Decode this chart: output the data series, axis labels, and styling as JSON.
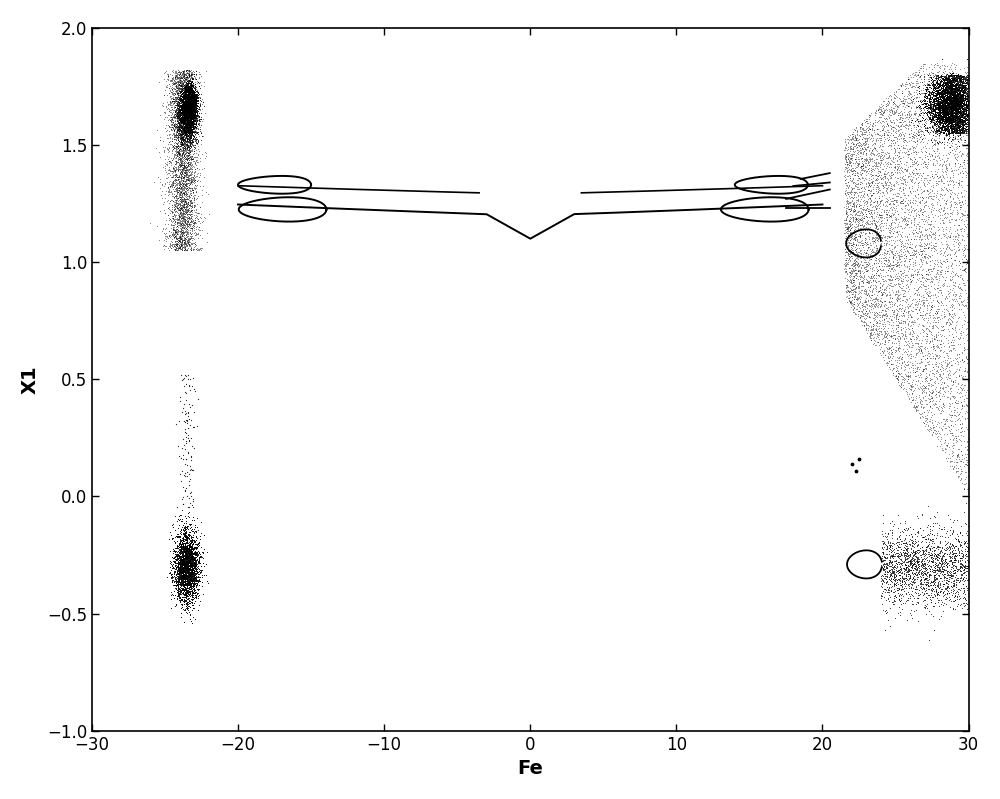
{
  "xlim": [
    -30,
    30
  ],
  "ylim": [
    -1,
    2
  ],
  "xlabel": "Fe",
  "ylabel": "X1",
  "xticks": [
    -30,
    -20,
    -10,
    0,
    10,
    20,
    30
  ],
  "yticks": [
    -1,
    -0.5,
    0,
    0.5,
    1,
    1.5,
    2
  ],
  "background_color": "#ffffff",
  "line_color": "#000000",
  "scatter_color": "#000000",
  "xlabel_fontsize": 14,
  "ylabel_fontsize": 14,
  "tick_fontsize": 12,
  "figure_width": 10.0,
  "figure_height": 7.99,
  "dpi": 100
}
